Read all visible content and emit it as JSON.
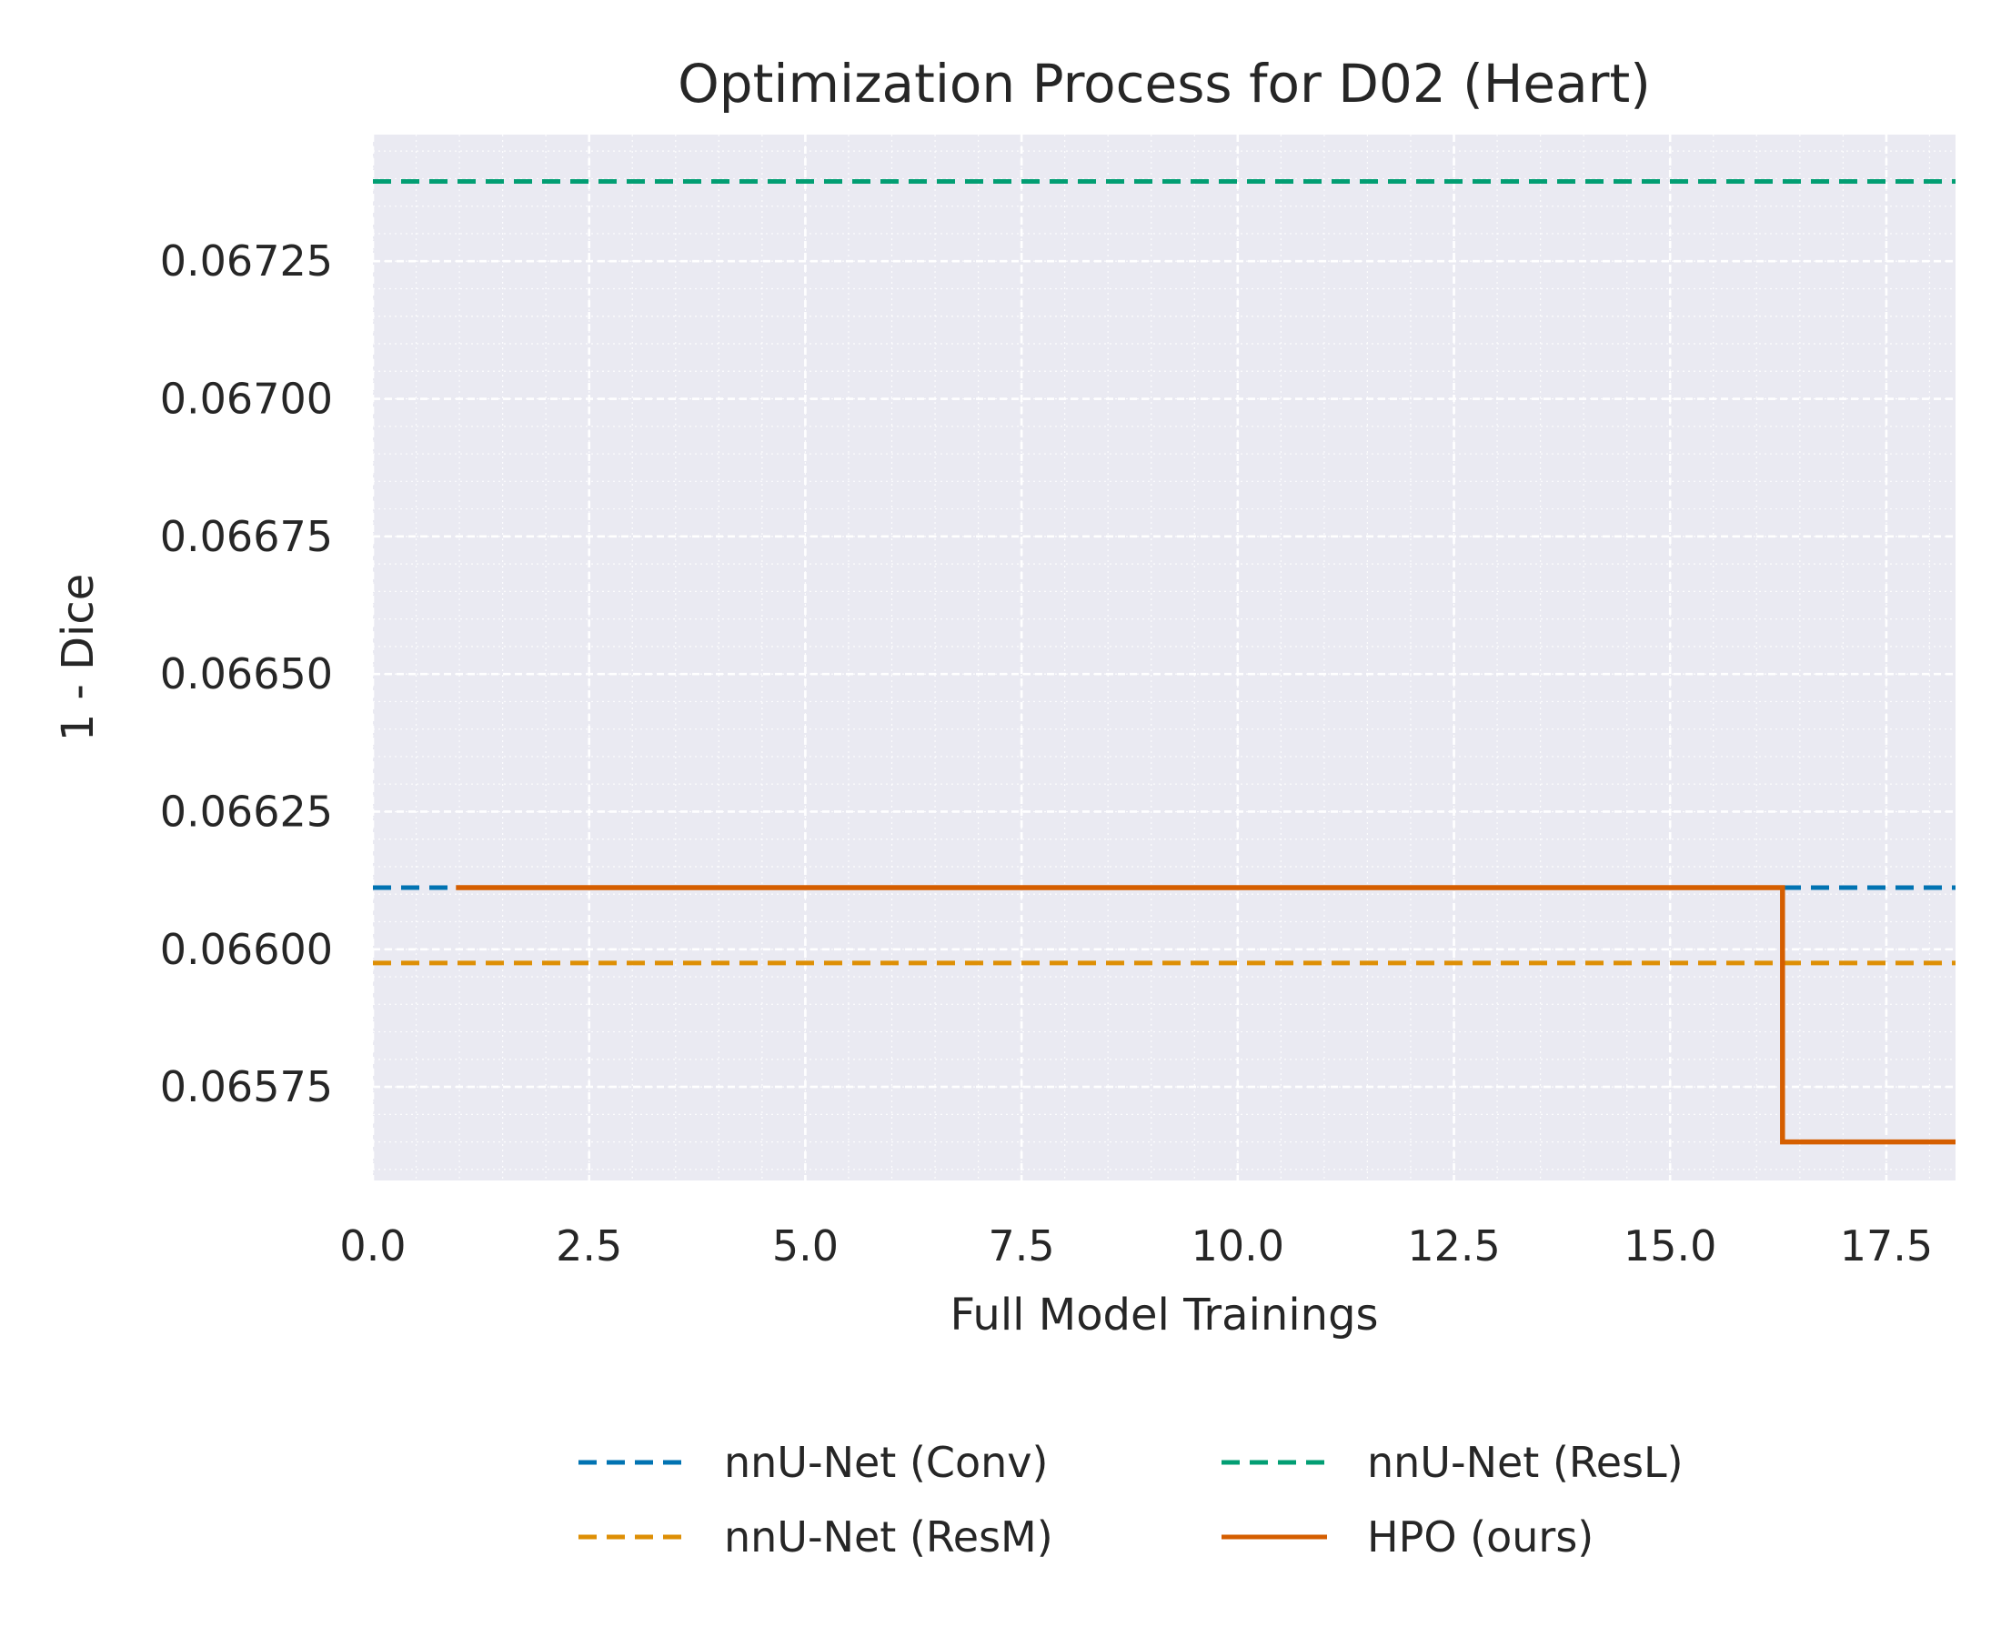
{
  "chart_data": {
    "type": "line",
    "title": "Optimization Process for D02 (Heart)",
    "xlabel": "Full Model Trainings",
    "ylabel": "1 - Dice",
    "xlim": [
      0,
      18.3
    ],
    "ylim": [
      0.06558,
      0.06748
    ],
    "x_ticks": [
      0.0,
      2.5,
      5.0,
      7.5,
      10.0,
      12.5,
      15.0,
      17.5
    ],
    "x_tick_labels": [
      "0.0",
      "2.5",
      "5.0",
      "7.5",
      "10.0",
      "12.5",
      "15.0",
      "17.5"
    ],
    "y_ticks": [
      0.06575,
      0.066,
      0.06625,
      0.0665,
      0.06675,
      0.067,
      0.06725
    ],
    "y_tick_labels": [
      "0.06575",
      "0.06600",
      "0.06625",
      "0.06650",
      "0.06675",
      "0.06700",
      "0.06725"
    ],
    "grid": true,
    "legend_position": "bottom-center",
    "series": [
      {
        "name": "nnU-Net (Conv)",
        "kind": "hline",
        "style": "dashed",
        "color": "#0173b2",
        "y": 0.066112
      },
      {
        "name": "nnU-Net (ResL)",
        "kind": "hline",
        "style": "dashed",
        "color": "#029e73",
        "y": 0.067395
      },
      {
        "name": "nnU-Net (ResM)",
        "kind": "hline",
        "style": "dashed",
        "color": "#de8f05",
        "y": 0.065975
      },
      {
        "name": "HPO (ours)",
        "kind": "step",
        "style": "solid",
        "color": "#d55e00",
        "x": [
          0.96,
          16.3,
          16.3,
          18.3
        ],
        "y": [
          0.066112,
          0.066112,
          0.06565,
          0.06565
        ]
      }
    ],
    "legend_order": [
      "nnU-Net (Conv)",
      "nnU-Net (ResL)",
      "nnU-Net (ResM)",
      "HPO (ours)"
    ]
  }
}
